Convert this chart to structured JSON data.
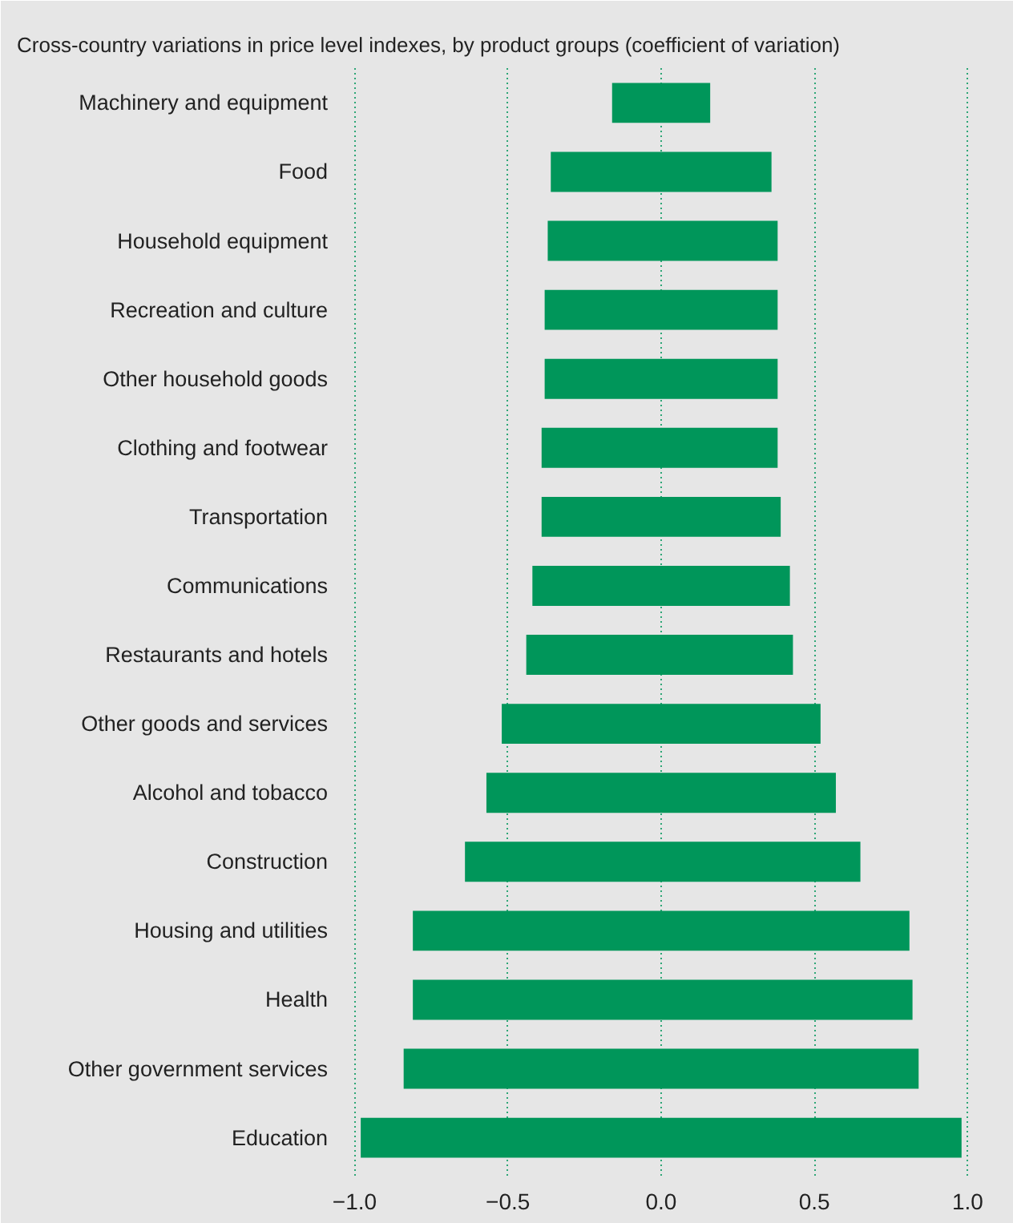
{
  "chart_data": {
    "type": "bar",
    "orientation": "horizontal",
    "title": "Cross-country variations in price level indexes, by product groups (coefficient of variation)",
    "categories": [
      "Machinery and equipment",
      "Food",
      "Household equipment",
      "Recreation and culture",
      "Other household goods",
      "Clothing and footwear",
      "Transportation",
      "Communications",
      "Restaurants and hotels",
      "Other goods and services",
      "Alcohol and tobacco",
      "Construction",
      "Housing and utilities",
      "Health",
      "Other government services",
      "Education"
    ],
    "base": [
      -0.16,
      -0.36,
      -0.37,
      -0.38,
      -0.38,
      -0.39,
      -0.39,
      -0.42,
      -0.44,
      -0.52,
      -0.57,
      -0.64,
      -0.81,
      -0.81,
      -0.84,
      -0.98
    ],
    "values": [
      0.32,
      0.72,
      0.75,
      0.76,
      0.76,
      0.77,
      0.78,
      0.84,
      0.87,
      1.04,
      1.14,
      1.29,
      1.62,
      1.63,
      1.68,
      1.96
    ],
    "color": "#00965a",
    "xlim": [
      -1.03,
      1.14
    ],
    "xticks": [
      {
        "value": -1.0,
        "label": "−1.0"
      },
      {
        "value": -0.5,
        "label": "−0.5"
      },
      {
        "value": 0.0,
        "label": "0.0"
      },
      {
        "value": 0.5,
        "label": "0.5"
      },
      {
        "value": 1.0,
        "label": "1.0"
      }
    ],
    "grid": "x"
  }
}
